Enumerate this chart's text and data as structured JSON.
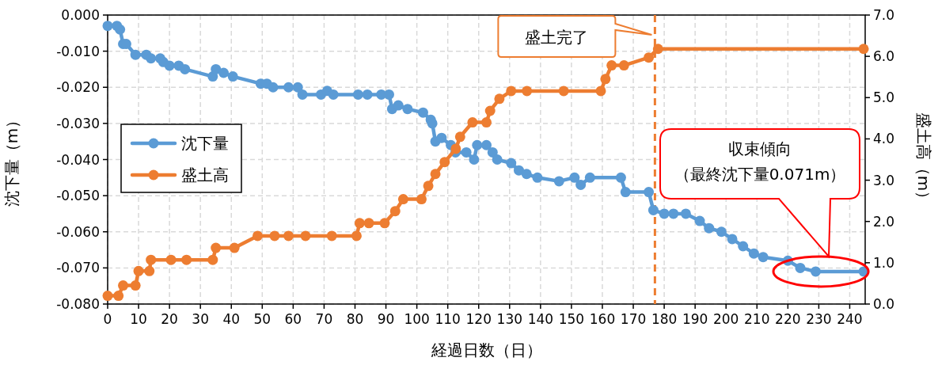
{
  "chart_data": {
    "type": "line",
    "xlabel": "経過日数（日）",
    "ylabel": "沈下量（m）",
    "y2label": "盛土高（m）",
    "xlim": [
      0,
      245
    ],
    "xticks": [
      0,
      10,
      20,
      30,
      40,
      50,
      60,
      70,
      80,
      90,
      100,
      110,
      120,
      130,
      140,
      150,
      160,
      170,
      180,
      190,
      200,
      210,
      220,
      230,
      240
    ],
    "ylim": [
      -0.08,
      0
    ],
    "yticks": [
      {
        "value": 0,
        "label": "0.000"
      },
      {
        "value": -0.01,
        "label": "-0.010"
      },
      {
        "value": -0.02,
        "label": "-0.020"
      },
      {
        "value": -0.03,
        "label": "-0.030"
      },
      {
        "value": -0.04,
        "label": "-0.040"
      },
      {
        "value": -0.05,
        "label": "-0.050"
      },
      {
        "value": -0.06,
        "label": "-0.060"
      },
      {
        "value": -0.07,
        "label": "-0.070"
      },
      {
        "value": -0.08,
        "label": "-0.080"
      }
    ],
    "y2lim": [
      0,
      7
    ],
    "y2ticks": [
      {
        "value": 0,
        "label": "0.0"
      },
      {
        "value": 1,
        "label": "1.0"
      },
      {
        "value": 2,
        "label": "2.0"
      },
      {
        "value": 3,
        "label": "3.0"
      },
      {
        "value": 4,
        "label": "4.0"
      },
      {
        "value": 5,
        "label": "5.0"
      },
      {
        "value": 6,
        "label": "6.0"
      },
      {
        "value": 7,
        "label": "7.0"
      }
    ],
    "grid": true,
    "legend": "left",
    "marker": "circle",
    "line_style": "solid",
    "series": [
      {
        "name": "沈下量",
        "color": "#5b9bd5",
        "x": [
          0,
          3,
          4,
          5,
          6,
          9,
          12.5,
          14,
          17,
          18,
          20,
          23,
          25,
          34,
          35,
          37.5,
          40.5,
          49.5,
          51.5,
          53.5,
          58.5,
          61.5,
          63,
          69,
          71,
          73,
          81,
          84,
          88.5,
          91,
          92,
          94,
          97,
          102,
          104.5,
          105,
          106,
          108,
          111,
          112.5,
          116,
          118.5,
          119.5,
          122.5,
          124.5,
          126,
          130.5,
          133,
          135.5,
          139,
          146,
          151,
          153,
          156,
          166,
          167.5,
          175,
          176.5,
          180,
          183,
          187,
          191.5,
          194.5,
          198.5,
          202,
          205.5,
          209,
          212,
          220,
          224,
          229,
          244.5
        ],
        "values": [
          -0.003,
          -0.003,
          -0.004,
          -0.008,
          -0.008,
          -0.011,
          -0.011,
          -0.012,
          -0.012,
          -0.013,
          -0.014,
          -0.014,
          -0.015,
          -0.017,
          -0.015,
          -0.016,
          -0.017,
          -0.019,
          -0.019,
          -0.02,
          -0.02,
          -0.02,
          -0.022,
          -0.022,
          -0.021,
          -0.022,
          -0.022,
          -0.022,
          -0.022,
          -0.022,
          -0.026,
          -0.025,
          -0.026,
          -0.027,
          -0.029,
          -0.03,
          -0.035,
          -0.034,
          -0.036,
          -0.038,
          -0.038,
          -0.04,
          -0.036,
          -0.036,
          -0.038,
          -0.04,
          -0.041,
          -0.043,
          -0.044,
          -0.045,
          -0.046,
          -0.045,
          -0.047,
          -0.045,
          -0.045,
          -0.049,
          -0.049,
          -0.054,
          -0.055,
          -0.055,
          -0.055,
          -0.057,
          -0.059,
          -0.06,
          -0.062,
          -0.064,
          -0.066,
          -0.067,
          -0.068,
          -0.07,
          -0.071,
          -0.071
        ]
      },
      {
        "name": "盛土高",
        "color": "#ed7d31",
        "axis": "y2",
        "x": [
          0,
          3.5,
          5,
          9,
          10,
          13.5,
          14,
          20.5,
          25.5,
          34,
          35,
          41,
          48.5,
          54,
          58.5,
          64,
          72.5,
          80.5,
          81.5,
          84.5,
          89.6,
          93,
          95.6,
          101.5,
          103.7,
          106,
          109,
          112.6,
          114,
          118,
          122.5,
          123.7,
          126.7,
          130.5,
          135.6,
          147.5,
          159.5,
          161,
          163,
          167,
          175,
          178,
          244.5
        ],
        "values": [
          0.2,
          0.2,
          0.45,
          0.45,
          0.8,
          0.8,
          1.07,
          1.07,
          1.07,
          1.07,
          1.36,
          1.36,
          1.65,
          1.65,
          1.65,
          1.65,
          1.65,
          1.65,
          1.96,
          1.96,
          1.96,
          2.25,
          2.54,
          2.54,
          2.86,
          3.15,
          3.44,
          3.76,
          4.05,
          4.4,
          4.4,
          4.68,
          4.97,
          5.16,
          5.16,
          5.16,
          5.16,
          5.45,
          5.78,
          5.78,
          5.97,
          6.18,
          6.18
        ]
      }
    ],
    "ref_lines": [
      {
        "axis": "x",
        "value": 177,
        "color": "#ed7d31",
        "line_style": "dashed"
      }
    ],
    "annotations": [
      "盛土完了",
      "収束傾向",
      "（最終沈下量0.071m）"
    ]
  }
}
